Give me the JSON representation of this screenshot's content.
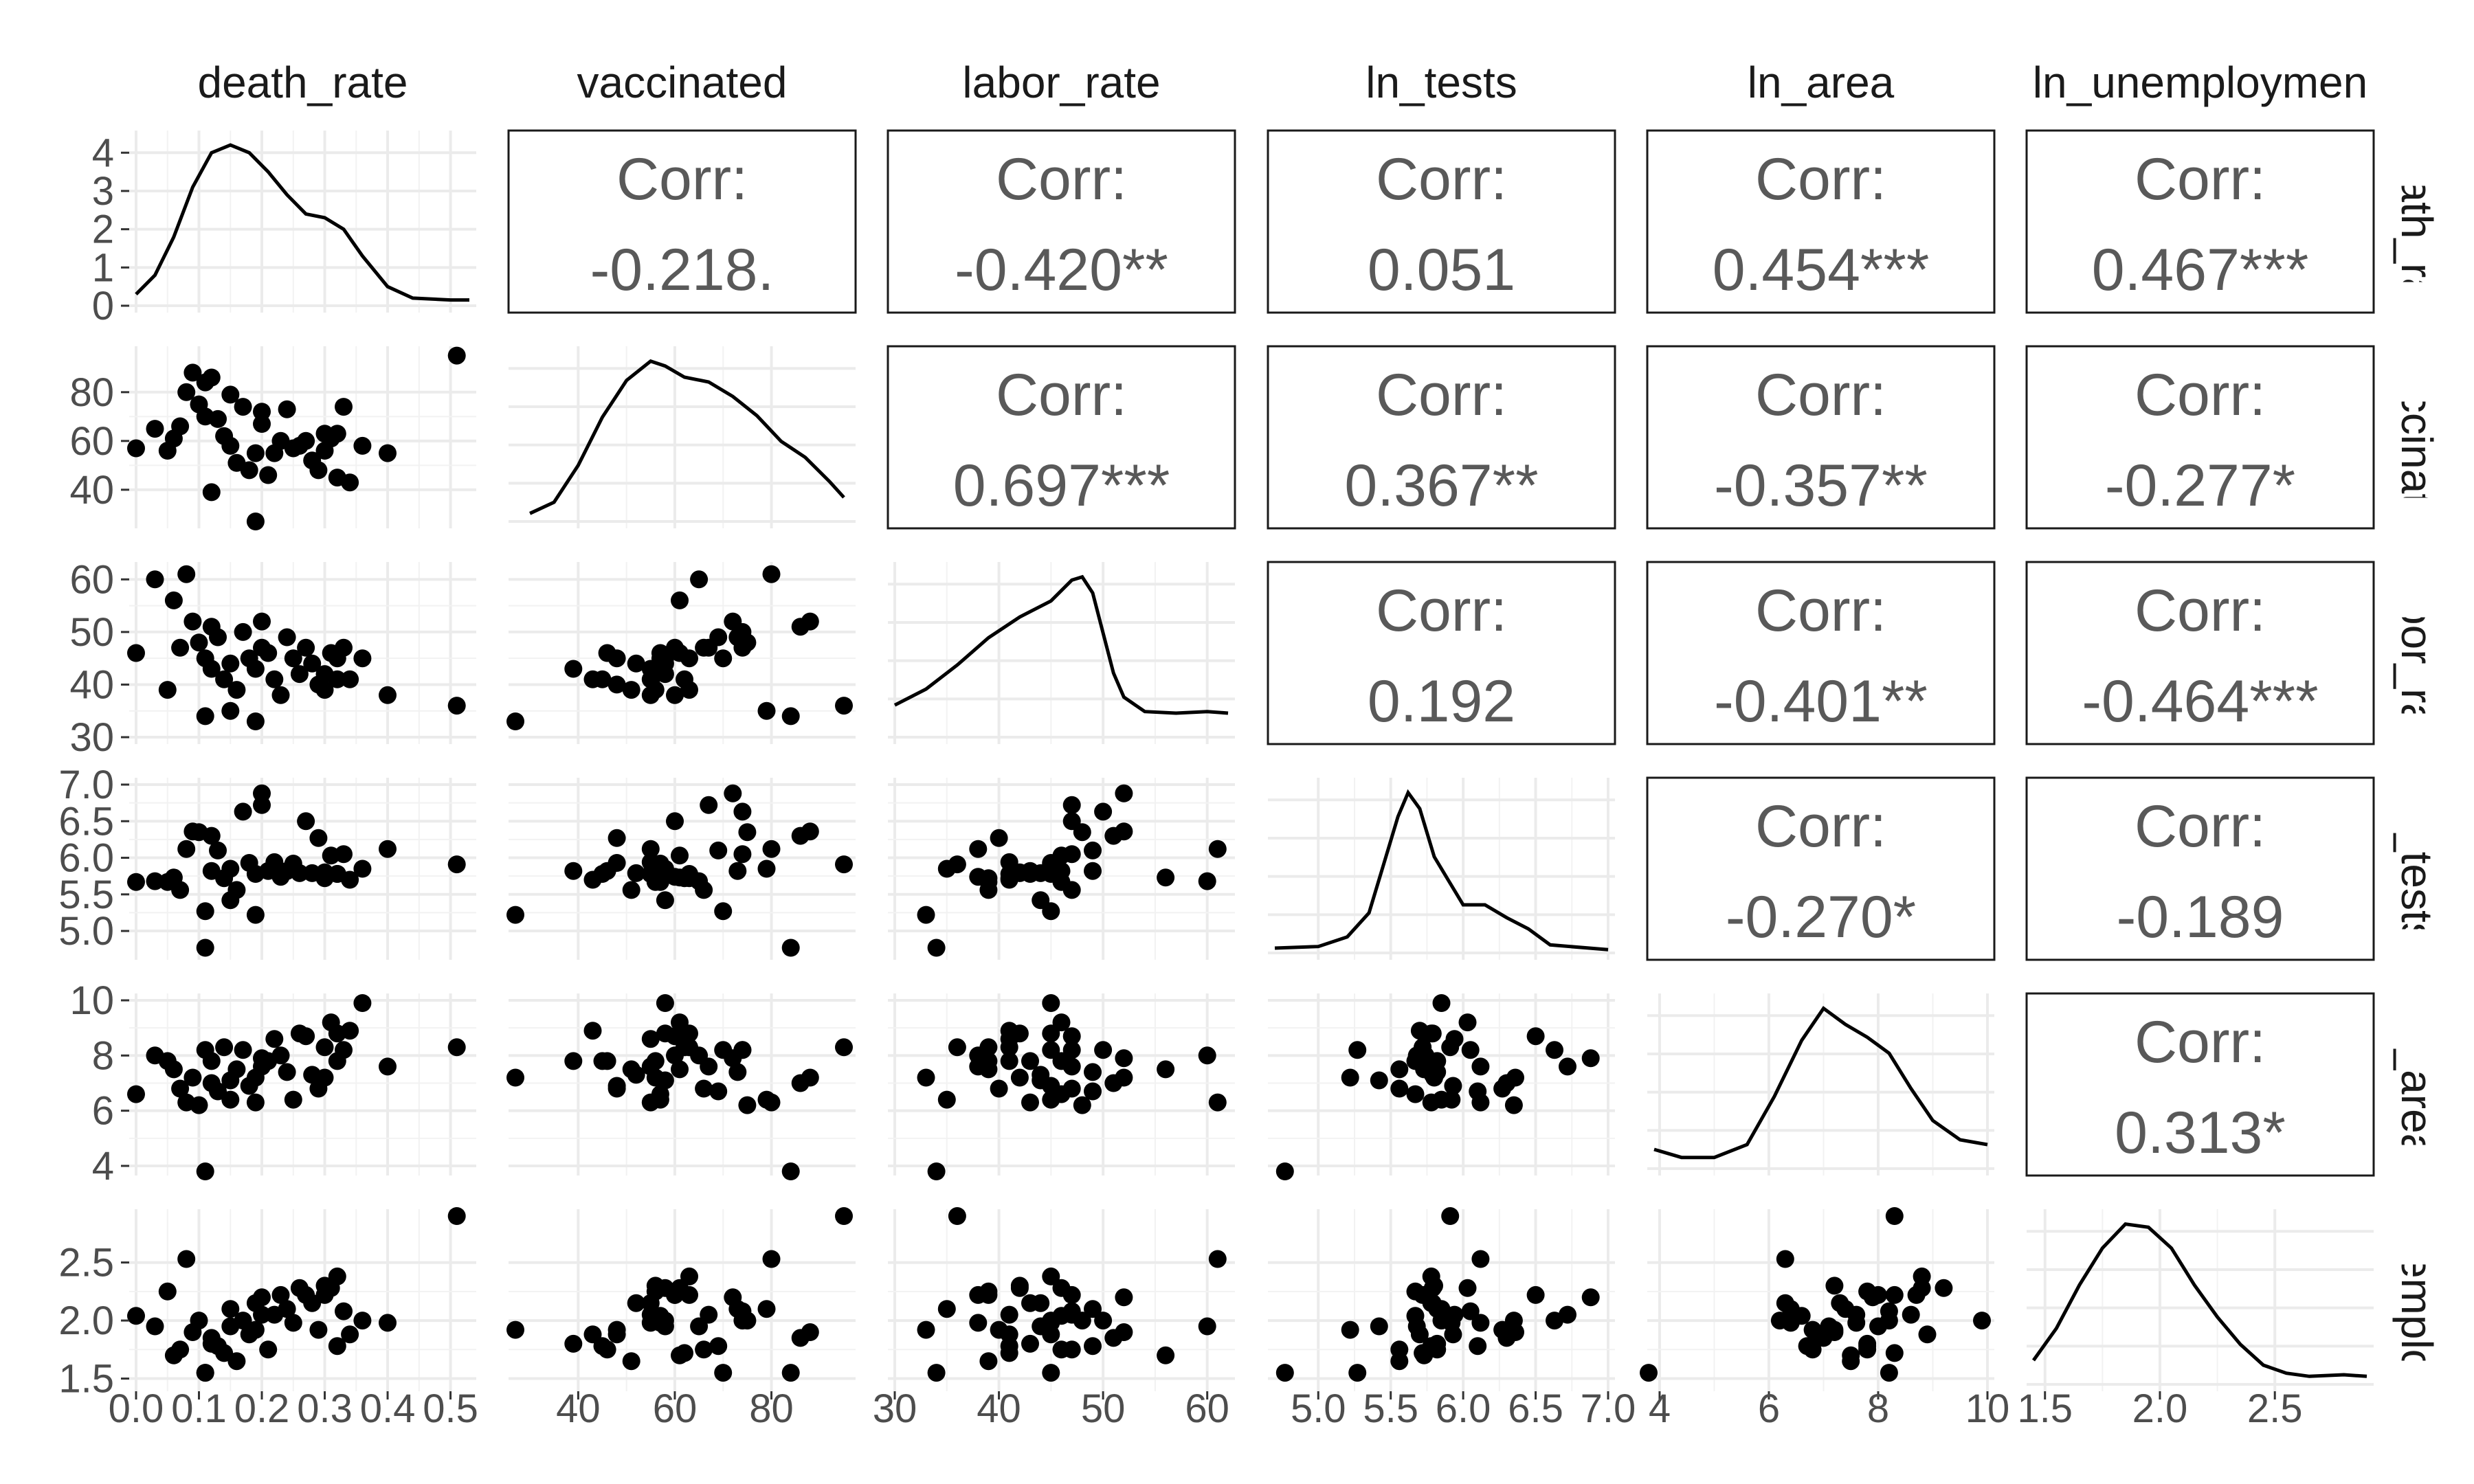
{
  "chart_data": {
    "type": "scatter_matrix",
    "title": "",
    "variables": [
      {
        "name": "death_rate",
        "column_label": "death_rate",
        "row_label": "death_rat",
        "range": [
          0,
          0.53
        ],
        "ticks": [
          0.0,
          0.1,
          0.2,
          0.3,
          0.4,
          0.5
        ],
        "tick_labels": [
          "0.0",
          "0.1",
          "0.2",
          "0.3",
          "0.4",
          "0.5"
        ]
      },
      {
        "name": "vaccinated",
        "column_label": "vaccinated",
        "row_label": "vaccinate",
        "range": [
          27,
          96
        ],
        "ticks": [
          40,
          60,
          80
        ],
        "tick_labels": [
          "40",
          "60",
          "80"
        ]
      },
      {
        "name": "labor_rate",
        "column_label": "labor_rate",
        "row_label": "labor_rat",
        "range": [
          30,
          62
        ],
        "ticks": [
          30,
          40,
          50,
          60
        ],
        "tick_labels": [
          "30",
          "40",
          "50",
          "60"
        ]
      },
      {
        "name": "ln_tests",
        "column_label": "ln_tests",
        "row_label": "ln_tests",
        "range": [
          4.7,
          7.0
        ],
        "ticks": [
          5.0,
          5.5,
          6.0,
          6.5,
          7.0
        ],
        "tick_labels": [
          "5.0",
          "5.5",
          "6.0",
          "6.5",
          "7.0"
        ]
      },
      {
        "name": "ln_area",
        "column_label": "ln_area",
        "row_label": "ln_area",
        "range": [
          3.9,
          10.0
        ],
        "ticks": [
          4,
          6,
          8,
          10
        ],
        "tick_labels": [
          "4",
          "6",
          "8",
          "10"
        ]
      },
      {
        "name": "ln_unemployment",
        "column_label": "ln_unemploymen",
        "row_label": "unemploy",
        "range": [
          1.45,
          2.9
        ],
        "ticks": [
          1.5,
          2.0,
          2.5
        ],
        "tick_labels": [
          "1.5",
          "2.0",
          "2.5"
        ]
      }
    ],
    "density_y_axis": {
      "ticks": [
        0,
        1,
        2,
        3,
        4
      ],
      "tick_labels": [
        "0",
        "1",
        "2",
        "3",
        "4"
      ],
      "range": [
        0,
        4.4
      ]
    },
    "correlations": [
      {
        "row": 0,
        "col": 1,
        "label": "Corr:",
        "value": "-0.218."
      },
      {
        "row": 0,
        "col": 2,
        "label": "Corr:",
        "value": "-0.420**"
      },
      {
        "row": 0,
        "col": 3,
        "label": "Corr:",
        "value": "0.051"
      },
      {
        "row": 0,
        "col": 4,
        "label": "Corr:",
        "value": "0.454***"
      },
      {
        "row": 0,
        "col": 5,
        "label": "Corr:",
        "value": "0.467***"
      },
      {
        "row": 1,
        "col": 2,
        "label": "Corr:",
        "value": "0.697***"
      },
      {
        "row": 1,
        "col": 3,
        "label": "Corr:",
        "value": "0.367**"
      },
      {
        "row": 1,
        "col": 4,
        "label": "Corr:",
        "value": "-0.357**"
      },
      {
        "row": 1,
        "col": 5,
        "label": "Corr:",
        "value": "-0.277*"
      },
      {
        "row": 2,
        "col": 3,
        "label": "Corr:",
        "value": "0.192"
      },
      {
        "row": 2,
        "col": 4,
        "label": "Corr:",
        "value": "-0.401**"
      },
      {
        "row": 2,
        "col": 5,
        "label": "Corr:",
        "value": "-0.464***"
      },
      {
        "row": 3,
        "col": 4,
        "label": "Corr:",
        "value": "-0.270*"
      },
      {
        "row": 3,
        "col": 5,
        "label": "Corr:",
        "value": "-0.189"
      },
      {
        "row": 4,
        "col": 5,
        "label": "Corr:",
        "value": "0.313*"
      }
    ],
    "densities": [
      {
        "var": "death_rate",
        "points": [
          [
            0.0,
            0.3
          ],
          [
            0.03,
            0.8
          ],
          [
            0.06,
            1.8
          ],
          [
            0.09,
            3.1
          ],
          [
            0.12,
            4.0
          ],
          [
            0.15,
            4.2
          ],
          [
            0.18,
            4.0
          ],
          [
            0.21,
            3.5
          ],
          [
            0.24,
            2.9
          ],
          [
            0.27,
            2.4
          ],
          [
            0.3,
            2.3
          ],
          [
            0.33,
            2.0
          ],
          [
            0.36,
            1.3
          ],
          [
            0.4,
            0.5
          ],
          [
            0.44,
            0.2
          ],
          [
            0.5,
            0.15
          ],
          [
            0.53,
            0.15
          ]
        ]
      },
      {
        "var": "vaccinated",
        "points": [
          [
            30,
            0.05
          ],
          [
            35,
            0.12
          ],
          [
            40,
            0.35
          ],
          [
            45,
            0.65
          ],
          [
            50,
            0.88
          ],
          [
            55,
            1.0
          ],
          [
            58,
            0.97
          ],
          [
            62,
            0.9
          ],
          [
            67,
            0.87
          ],
          [
            72,
            0.78
          ],
          [
            77,
            0.66
          ],
          [
            82,
            0.5
          ],
          [
            87,
            0.4
          ],
          [
            92,
            0.25
          ],
          [
            95,
            0.15
          ]
        ]
      },
      {
        "var": "labor_rate",
        "points": [
          [
            30,
            0.2
          ],
          [
            33,
            0.3
          ],
          [
            36,
            0.45
          ],
          [
            39,
            0.62
          ],
          [
            42,
            0.75
          ],
          [
            45,
            0.85
          ],
          [
            47,
            0.98
          ],
          [
            48,
            1.0
          ],
          [
            49,
            0.9
          ],
          [
            50,
            0.65
          ],
          [
            51,
            0.4
          ],
          [
            52,
            0.25
          ],
          [
            54,
            0.16
          ],
          [
            57,
            0.15
          ],
          [
            60,
            0.16
          ],
          [
            62,
            0.15
          ]
        ]
      },
      {
        "var": "ln_tests",
        "points": [
          [
            4.7,
            0.03
          ],
          [
            5.0,
            0.04
          ],
          [
            5.2,
            0.1
          ],
          [
            5.35,
            0.25
          ],
          [
            5.45,
            0.55
          ],
          [
            5.55,
            0.85
          ],
          [
            5.62,
            1.0
          ],
          [
            5.7,
            0.9
          ],
          [
            5.8,
            0.6
          ],
          [
            5.9,
            0.45
          ],
          [
            6.0,
            0.3
          ],
          [
            6.15,
            0.3
          ],
          [
            6.3,
            0.22
          ],
          [
            6.45,
            0.15
          ],
          [
            6.6,
            0.05
          ],
          [
            7.0,
            0.02
          ]
        ]
      },
      {
        "var": "ln_area",
        "points": [
          [
            3.9,
            0.12
          ],
          [
            4.4,
            0.07
          ],
          [
            5.0,
            0.07
          ],
          [
            5.6,
            0.15
          ],
          [
            6.1,
            0.45
          ],
          [
            6.6,
            0.8
          ],
          [
            7.0,
            1.0
          ],
          [
            7.4,
            0.9
          ],
          [
            7.8,
            0.82
          ],
          [
            8.2,
            0.72
          ],
          [
            8.6,
            0.5
          ],
          [
            9.0,
            0.3
          ],
          [
            9.5,
            0.18
          ],
          [
            10.0,
            0.15
          ]
        ]
      },
      {
        "var": "ln_unemployment",
        "points": [
          [
            1.45,
            0.15
          ],
          [
            1.55,
            0.35
          ],
          [
            1.65,
            0.62
          ],
          [
            1.75,
            0.85
          ],
          [
            1.85,
            1.0
          ],
          [
            1.95,
            0.98
          ],
          [
            2.05,
            0.85
          ],
          [
            2.15,
            0.62
          ],
          [
            2.25,
            0.42
          ],
          [
            2.35,
            0.25
          ],
          [
            2.45,
            0.12
          ],
          [
            2.55,
            0.07
          ],
          [
            2.65,
            0.05
          ],
          [
            2.8,
            0.06
          ],
          [
            2.9,
            0.05
          ]
        ]
      }
    ],
    "observations": [
      [
        0.0,
        57,
        46,
        5.67,
        6.6,
        2.04
      ],
      [
        0.03,
        65,
        60,
        5.68,
        8.0,
        1.95
      ],
      [
        0.05,
        56,
        39,
        5.67,
        7.8,
        2.25
      ],
      [
        0.06,
        61,
        56,
        5.73,
        7.5,
        1.7
      ],
      [
        0.07,
        66,
        47,
        5.56,
        6.8,
        1.75
      ],
      [
        0.08,
        80,
        61,
        6.12,
        6.3,
        2.53
      ],
      [
        0.09,
        88,
        52,
        6.36,
        7.2,
        1.9
      ],
      [
        0.1,
        75,
        48,
        6.35,
        6.2,
        2.0
      ],
      [
        0.11,
        70,
        45,
        5.27,
        8.2,
        1.55
      ],
      [
        0.11,
        84,
        34,
        4.77,
        3.8,
        1.55
      ],
      [
        0.12,
        39,
        43,
        5.82,
        7.8,
        1.8
      ],
      [
        0.12,
        86,
        51,
        6.3,
        7.0,
        1.85
      ],
      [
        0.13,
        69,
        49,
        6.1,
        6.7,
        1.78
      ],
      [
        0.14,
        62,
        41,
        5.72,
        8.3,
        1.72
      ],
      [
        0.15,
        58,
        44,
        5.42,
        7.1,
        1.95
      ],
      [
        0.15,
        79,
        35,
        5.85,
        6.4,
        2.1
      ],
      [
        0.16,
        51,
        39,
        5.56,
        7.5,
        1.65
      ],
      [
        0.17,
        74,
        50,
        6.63,
        8.2,
        2.0
      ],
      [
        0.18,
        48,
        45,
        5.93,
        6.9,
        1.88
      ],
      [
        0.19,
        55,
        43,
        5.78,
        6.3,
        2.15
      ],
      [
        0.19,
        27,
        33,
        5.22,
        7.2,
        1.92
      ],
      [
        0.2,
        67,
        47,
        6.72,
        7.6,
        2.05
      ],
      [
        0.2,
        72,
        52,
        6.88,
        7.9,
        2.2
      ],
      [
        0.21,
        46,
        46,
        5.82,
        7.8,
        1.75
      ],
      [
        0.22,
        55,
        41,
        5.94,
        8.6,
        2.05
      ],
      [
        0.23,
        60,
        38,
        5.74,
        8.0,
        2.22
      ],
      [
        0.24,
        73,
        49,
        5.82,
        7.4,
        2.1
      ],
      [
        0.25,
        57,
        45,
        5.92,
        6.4,
        1.98
      ],
      [
        0.26,
        58,
        42,
        5.79,
        8.8,
        2.28
      ],
      [
        0.27,
        60,
        47,
        6.5,
        8.7,
        2.22
      ],
      [
        0.28,
        52,
        44,
        5.79,
        7.3,
        2.15
      ],
      [
        0.29,
        48,
        40,
        6.27,
        6.8,
        1.92
      ],
      [
        0.3,
        56,
        42,
        5.8,
        7.2,
        2.3
      ],
      [
        0.3,
        63,
        39,
        5.72,
        8.3,
        2.22
      ],
      [
        0.31,
        61,
        46,
        6.03,
        9.2,
        2.28
      ],
      [
        0.32,
        63,
        45,
        5.78,
        8.8,
        2.38
      ],
      [
        0.32,
        45,
        41,
        5.78,
        7.8,
        1.78
      ],
      [
        0.33,
        74,
        47,
        6.05,
        8.2,
        2.08
      ],
      [
        0.34,
        43,
        41,
        5.7,
        8.9,
        1.88
      ],
      [
        0.36,
        58,
        45,
        5.85,
        9.9,
        2.0
      ],
      [
        0.4,
        55,
        38,
        6.12,
        7.6,
        1.98
      ],
      [
        0.51,
        95,
        36,
        5.91,
        8.3,
        2.9
      ]
    ]
  }
}
